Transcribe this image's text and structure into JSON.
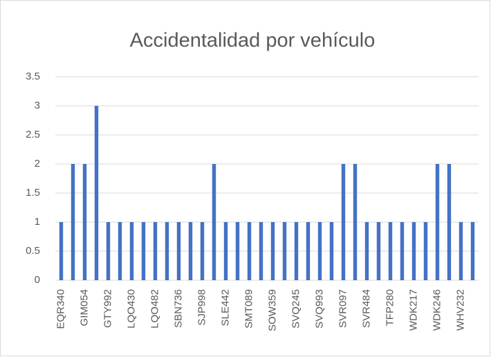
{
  "chart_data": {
    "type": "bar",
    "title": "Accidentalidad por vehículo",
    "categories": [
      "EQR340",
      null,
      "GIM054",
      null,
      "GTY992",
      null,
      "LQO430",
      null,
      "LQO482",
      null,
      "SBN736",
      null,
      "SJP998",
      null,
      "SLE442",
      null,
      "SMT089",
      null,
      "SOW359",
      null,
      "SVQ245",
      null,
      "SVQ993",
      null,
      "SVR097",
      null,
      "SVR484",
      null,
      "TFP280",
      null,
      "WDK217",
      null,
      "WDK246",
      null,
      "WHV232",
      null
    ],
    "values": [
      1,
      2,
      2,
      3,
      1,
      1,
      1,
      1,
      1,
      1,
      1,
      1,
      1,
      2,
      1,
      1,
      1,
      1,
      1,
      1,
      1,
      1,
      1,
      1,
      2,
      2,
      1,
      1,
      1,
      1,
      1,
      1,
      2,
      2,
      1,
      1
    ],
    "color": "#4472c4",
    "ylim": [
      0,
      3.5
    ],
    "yticks": [
      0,
      0.5,
      1,
      1.5,
      2,
      2.5,
      3,
      3.5
    ],
    "grid": true
  }
}
